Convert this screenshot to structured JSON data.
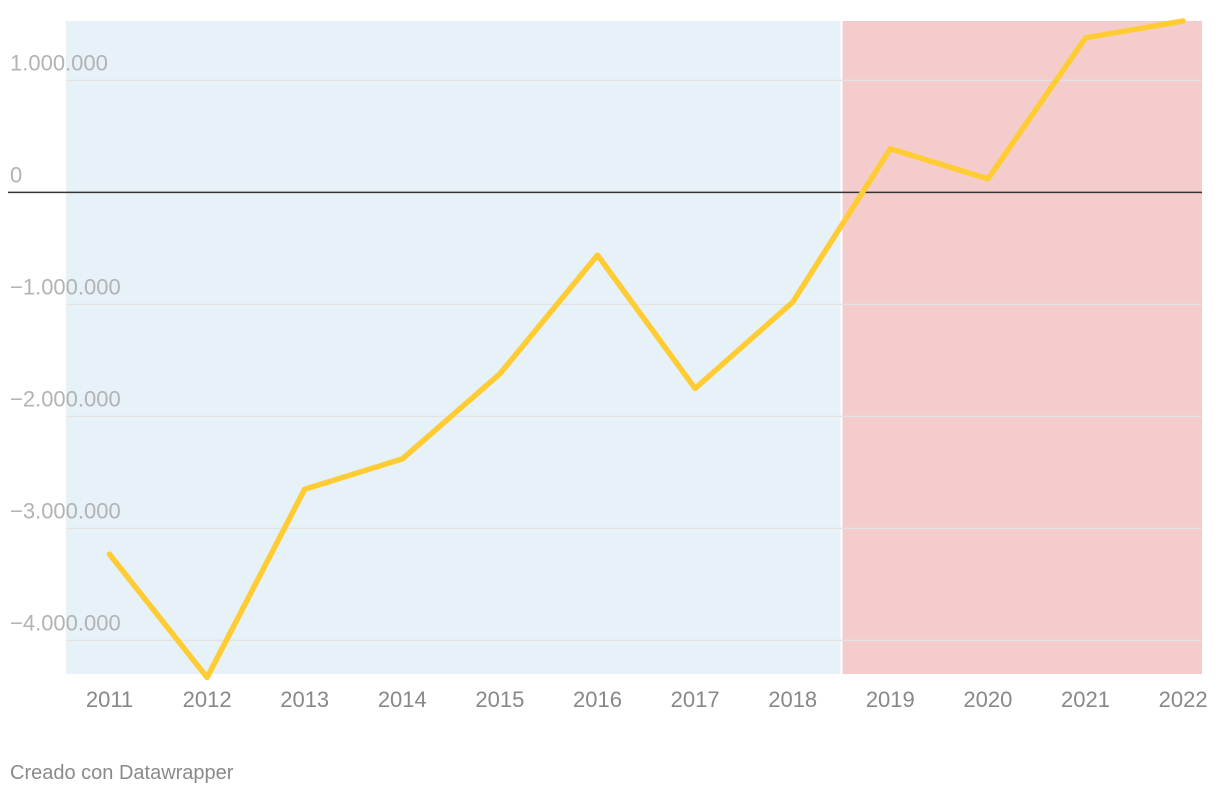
{
  "chart_data": {
    "type": "line",
    "title": "",
    "xlabel": "",
    "ylabel": "",
    "x": [
      "2011",
      "2012",
      "2013",
      "2014",
      "2015",
      "2016",
      "2017",
      "2018",
      "2019",
      "2020",
      "2021",
      "2022"
    ],
    "series": [
      {
        "values": [
          -3230000,
          -4330000,
          -2650000,
          -2380000,
          -1620000,
          -560000,
          -1750000,
          -980000,
          390000,
          120000,
          1380000,
          1530000
        ],
        "color": "#ffcc33"
      }
    ],
    "ylim": [
      -4300000,
      1530000
    ],
    "yticks": [
      1000000,
      0,
      -1000000,
      -2000000,
      -3000000,
      -4000000
    ],
    "ytick_labels": [
      "1.000.000",
      "0",
      "−1.000.000",
      "−2.000.000",
      "−3.000.000",
      "−4.000.000"
    ],
    "shaded_ranges": [
      {
        "from": "2011",
        "to": "2018",
        "color": "#e6f1f8"
      },
      {
        "from": "2019",
        "to": "2022",
        "color": "#f5cccc"
      }
    ],
    "grid": true,
    "zero_line": true
  },
  "footer": {
    "credit": "Creado con Datawrapper"
  }
}
